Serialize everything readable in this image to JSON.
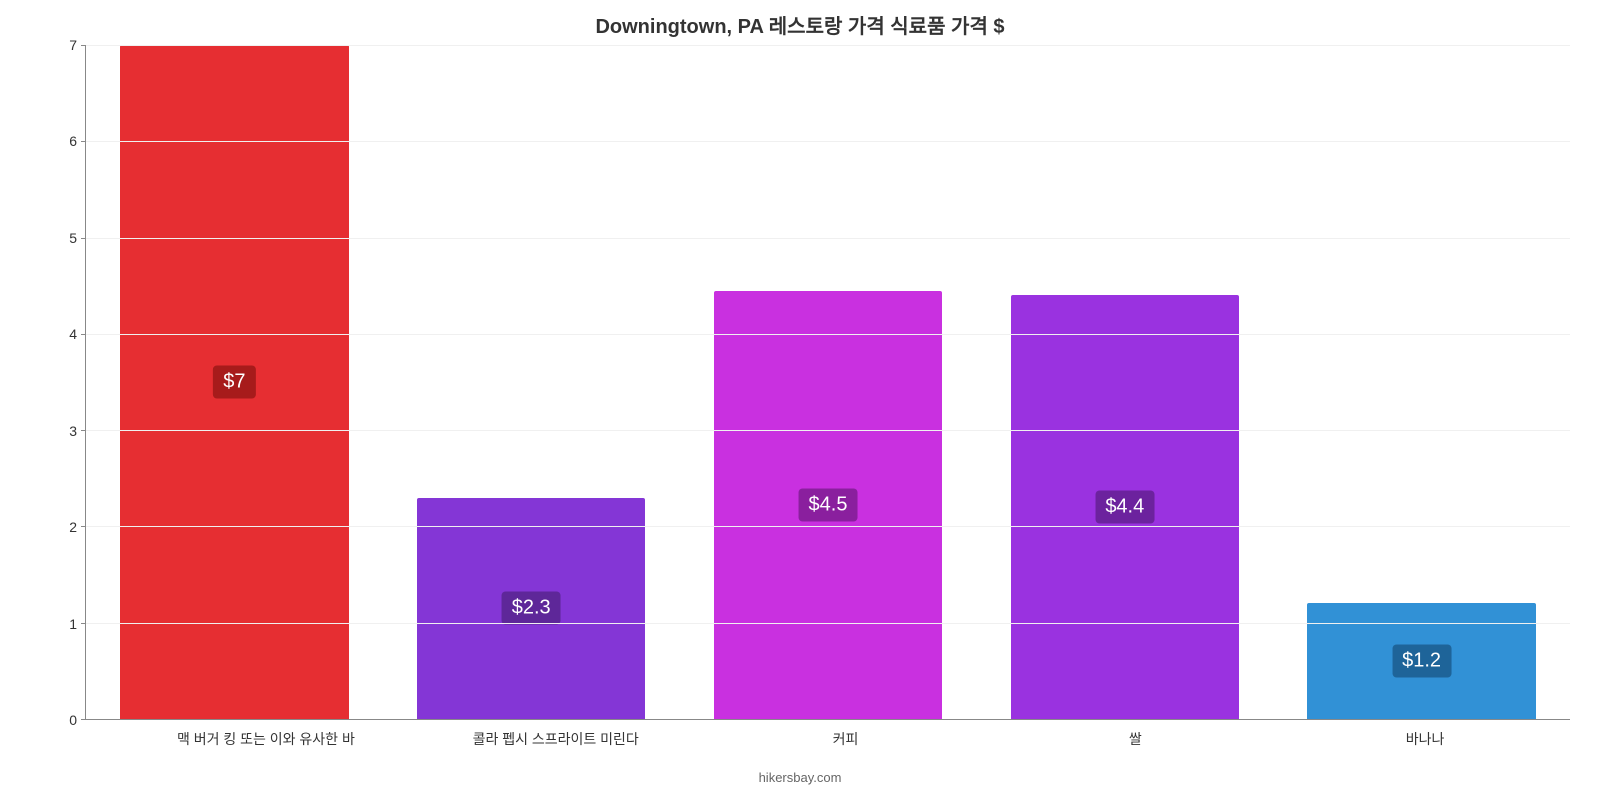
{
  "chart": {
    "type": "bar",
    "title": "Downingtown, PA 레스토랑 가격 식료품 가격 $",
    "title_fontsize": 20,
    "title_color": "#333333",
    "background_color": "#ffffff",
    "grid_color": "#f0f0f0",
    "axis_color": "#888888",
    "ylim": [
      0,
      7
    ],
    "ytick_step": 1,
    "yticks": [
      0,
      1,
      2,
      3,
      4,
      5,
      6,
      7
    ],
    "label_fontsize": 14,
    "bar_width_pct": 77,
    "bars": [
      {
        "category": "맥 버거 킹 또는 이와 유사한 바",
        "value": 7,
        "value_label": "$7",
        "bar_color": "#e62e32",
        "label_bg": "#a71b1b"
      },
      {
        "category": "콜라 펩시 스프라이트 미린다",
        "value": 2.3,
        "value_label": "$2.3",
        "bar_color": "#8436d6",
        "label_bg": "#5e2799"
      },
      {
        "category": "커피",
        "value": 4.45,
        "value_label": "$4.5",
        "bar_color": "#c930e0",
        "label_bg": "#8a1f9e"
      },
      {
        "category": "쌀",
        "value": 4.4,
        "value_label": "$4.4",
        "bar_color": "#9a32e0",
        "label_bg": "#6c229e"
      },
      {
        "category": "바나나",
        "value": 1.2,
        "value_label": "$1.2",
        "bar_color": "#3191d6",
        "label_bg": "#1e6499"
      }
    ],
    "attribution": "hikersbay.com",
    "value_label_fontsize": 20,
    "value_label_color": "#ffffff"
  }
}
